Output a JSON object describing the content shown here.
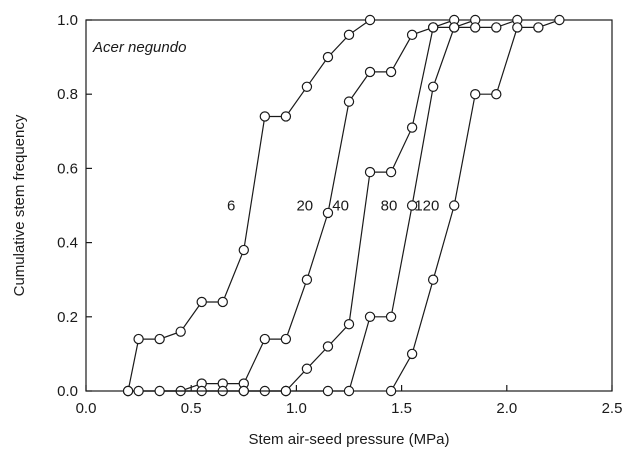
{
  "chart_data": {
    "type": "line",
    "annotation": "Acer negundo",
    "xlabel": "Stem air-seed pressure (MPa)",
    "ylabel": "Cumulative stem frequency",
    "xlim": [
      0.0,
      2.5
    ],
    "ylim": [
      0.0,
      1.0
    ],
    "x_ticks": [
      "0.0",
      "0.5",
      "1.0",
      "1.5",
      "2.0",
      "2.5"
    ],
    "y_ticks": [
      "0.0",
      "0.2",
      "0.4",
      "0.6",
      "0.8",
      "1.0"
    ],
    "grid": false,
    "legend": "none",
    "series": [
      {
        "name": "6",
        "x": [
          0.2,
          0.25,
          0.35,
          0.45,
          0.55,
          0.65,
          0.75,
          0.85,
          0.95,
          1.05,
          1.15,
          1.25,
          1.35
        ],
        "y": [
          0.0,
          0.14,
          0.14,
          0.16,
          0.24,
          0.24,
          0.38,
          0.74,
          0.74,
          0.82,
          0.9,
          0.96,
          1.0
        ]
      },
      {
        "name": "20",
        "x": [
          0.2,
          0.45,
          0.55,
          0.65,
          0.75,
          0.85,
          0.95,
          1.05,
          1.15,
          1.25,
          1.35,
          1.45,
          1.55,
          1.65,
          1.75
        ],
        "y": [
          0.0,
          0.0,
          0.02,
          0.02,
          0.02,
          0.14,
          0.14,
          0.3,
          0.48,
          0.78,
          0.86,
          0.86,
          0.96,
          0.98,
          1.0
        ]
      },
      {
        "name": "40",
        "x": [
          0.25,
          0.55,
          0.65,
          0.75,
          0.85,
          0.95,
          1.05,
          1.15,
          1.25,
          1.35,
          1.45,
          1.55,
          1.65,
          1.75,
          1.85
        ],
        "y": [
          0.0,
          0.0,
          0.0,
          0.0,
          0.0,
          0.0,
          0.06,
          0.12,
          0.18,
          0.59,
          0.59,
          0.71,
          0.98,
          0.98,
          1.0
        ]
      },
      {
        "name": "80",
        "x": [
          0.35,
          0.75,
          0.95,
          1.15,
          1.25,
          1.35,
          1.45,
          1.55,
          1.65,
          1.75,
          1.85,
          1.95,
          2.05
        ],
        "y": [
          0.0,
          0.0,
          0.0,
          0.0,
          0.0,
          0.2,
          0.2,
          0.5,
          0.82,
          0.98,
          0.98,
          0.98,
          1.0
        ]
      },
      {
        "name": "120",
        "x": [
          1.45,
          1.55,
          1.65,
          1.75,
          1.85,
          1.95,
          2.05,
          2.15,
          2.25
        ],
        "y": [
          0.0,
          0.1,
          0.3,
          0.5,
          0.8,
          0.8,
          0.98,
          0.98,
          1.0
        ]
      }
    ]
  }
}
